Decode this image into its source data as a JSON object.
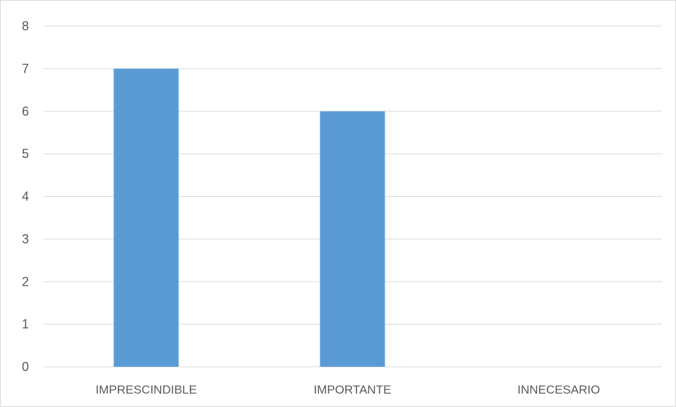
{
  "chart_data": {
    "type": "bar",
    "categories": [
      "IMPRESCINDIBLE",
      "IMPORTANTE",
      "INNECESARIO"
    ],
    "values": [
      7,
      6,
      0
    ],
    "ylim": [
      0,
      8
    ],
    "yticks": [
      0,
      1,
      2,
      3,
      4,
      5,
      6,
      7,
      8
    ],
    "title": "",
    "xlabel": "",
    "ylabel": "",
    "grid": true,
    "legend": "none",
    "bar_color": "#5b9bd5",
    "grid_color": "#d9d9d9",
    "text_color": "#595959"
  }
}
